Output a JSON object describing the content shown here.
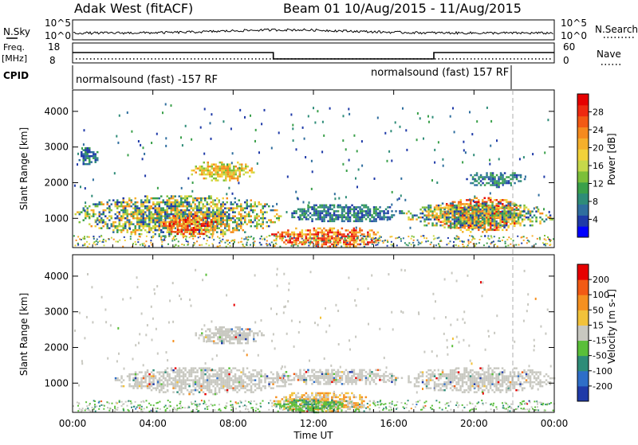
{
  "header": {
    "station": "Adak West (fitACF)",
    "beam_date": "Beam 01  10/Aug/2015 - 11/Aug/2015"
  },
  "strips": {
    "nsky_label": "N.Sky",
    "nsky_ticks": [
      "10^5",
      "10^0"
    ],
    "nsearch_label": "N.Search",
    "nsearch_ticks": [
      "10^5",
      "10^0"
    ],
    "freq_label_line1": "Freq.",
    "freq_label_line2": "[MHz]",
    "freq_ticks": [
      "18",
      "8"
    ],
    "nave_label": "Nave",
    "nave_ticks": [
      "60",
      "0"
    ],
    "cpid_label": "CPID",
    "cpid_left": "normalsound (fast) -157 RF",
    "cpid_right": "normalsound (fast) 157 RF"
  },
  "chart_data": [
    {
      "type": "heatmap",
      "name": "power",
      "ylabel": "Slant Range [km]",
      "ylim": [
        180,
        4600
      ],
      "yticks": [
        "4000",
        "3000",
        "2000",
        "1000"
      ],
      "xlim_hours": [
        0,
        24
      ],
      "colorbar": {
        "label": "Power [dB]",
        "ticks": [
          "28",
          "24",
          "20",
          "16",
          "12",
          "8",
          "4"
        ],
        "colors": [
          "#0000ff",
          "#1f3aa8",
          "#2f6e9e",
          "#2e8c78",
          "#3aa04a",
          "#7cbf3a",
          "#c6d84a",
          "#f2d23a",
          "#f5b02c",
          "#f58a1e",
          "#f25a14",
          "#ee2a10",
          "#e60000"
        ]
      },
      "regions": [
        {
          "name": "band-1000-daytime",
          "t": [
            0,
            10.5
          ],
          "r": [
            500,
            1700
          ],
          "level": "mixed"
        },
        {
          "name": "strong-echo-0530",
          "t": [
            4.3,
            7.2
          ],
          "r": [
            550,
            1150
          ],
          "level": "high"
        },
        {
          "name": "patch-0630-2300km",
          "t": [
            5.8,
            9.0
          ],
          "r": [
            2050,
            2650
          ],
          "level": "medium"
        },
        {
          "name": "band-1200-night",
          "t": [
            10.5,
            16.5
          ],
          "r": [
            900,
            1450
          ],
          "level": "low"
        },
        {
          "name": "low-range-1130",
          "t": [
            9.8,
            15.5
          ],
          "r": [
            200,
            800
          ],
          "level": "high"
        },
        {
          "name": "strong-echo-2000",
          "t": [
            18.0,
            22.5
          ],
          "r": [
            600,
            1650
          ],
          "level": "high"
        },
        {
          "name": "band-1100-evening",
          "t": [
            16.5,
            24
          ],
          "r": [
            700,
            1500
          ],
          "level": "mixed"
        },
        {
          "name": "scatter-2100km",
          "t": [
            19.5,
            22.5
          ],
          "r": [
            1900,
            2350
          ],
          "level": "low"
        },
        {
          "name": "early-3000km",
          "t": [
            0.2,
            1.3
          ],
          "r": [
            2500,
            3050
          ],
          "level": "low"
        }
      ]
    },
    {
      "type": "heatmap",
      "name": "velocity",
      "ylabel": "Slant Range [km]",
      "ylim": [
        180,
        4600
      ],
      "yticks": [
        "4000",
        "3000",
        "2000",
        "1000"
      ],
      "xlim_hours": [
        0,
        24
      ],
      "xticks": [
        "00:00",
        "04:00",
        "08:00",
        "12:00",
        "16:00",
        "20:00",
        "00:00"
      ],
      "xlabel": "Time UT",
      "colorbar": {
        "label": "Velocity [m s-1]",
        "ticks": [
          "200",
          "100",
          "50",
          "15",
          "-15",
          "-50",
          "-100",
          "-200"
        ],
        "colors": [
          "#1f3aa8",
          "#2e6ec8",
          "#2e8c78",
          "#5abf3a",
          "#c8c8c0",
          "#f2c23a",
          "#f59020",
          "#f25a14",
          "#e60000"
        ]
      },
      "regions": [
        {
          "name": "ground-scatter-1000",
          "t": [
            2.0,
            11.0
          ],
          "r": [
            700,
            1500
          ],
          "level": "zero"
        },
        {
          "name": "ground-scatter-2300",
          "t": [
            6.0,
            9.5
          ],
          "r": [
            2100,
            2650
          ],
          "level": "zero"
        },
        {
          "name": "ground-scatter-1200n",
          "t": [
            10.0,
            16.5
          ],
          "r": [
            950,
            1450
          ],
          "level": "zero"
        },
        {
          "name": "ground-scatter-eve",
          "t": [
            16.5,
            24
          ],
          "r": [
            750,
            1500
          ],
          "level": "zero"
        },
        {
          "name": "negative-low-range",
          "t": [
            9.8,
            15.0
          ],
          "r": [
            200,
            800
          ],
          "level": "negative"
        },
        {
          "name": "positive-low-range",
          "t": [
            10.0,
            13.5
          ],
          "r": [
            200,
            600
          ],
          "level": "positive"
        }
      ]
    }
  ]
}
